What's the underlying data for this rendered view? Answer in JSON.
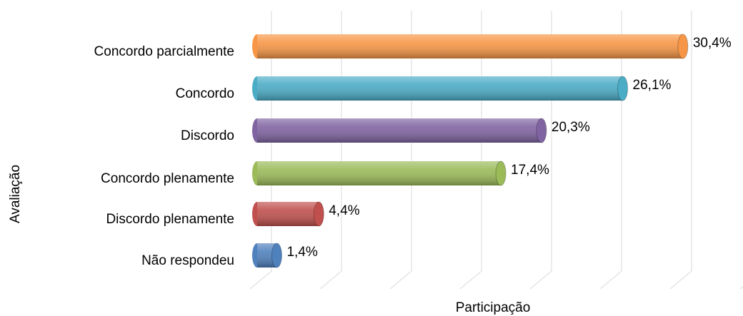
{
  "chart_data": {
    "type": "bar",
    "orientation": "horizontal",
    "x_label": "Participação",
    "y_label": "Avaliação",
    "categories": [
      "Concordo parcialmente",
      "Concordo ",
      "Discordo",
      "Concordo plenamente",
      "Discordo plenamente",
      "Não respondeu"
    ],
    "values": [
      30.4,
      26.1,
      20.3,
      17.4,
      4.4,
      1.4
    ],
    "value_labels": [
      "30,4%",
      "26,1%",
      "20,3%",
      "17,4%",
      "4,4%",
      "1,4%"
    ],
    "colors": [
      "#f79646",
      "#4bacc6",
      "#8064a2",
      "#9bbb59",
      "#c0504d",
      "#4f81bd"
    ],
    "xlim": [
      0,
      35
    ],
    "xticks": [
      0,
      5,
      10,
      15,
      20,
      25,
      30,
      35
    ],
    "grid": true
  }
}
